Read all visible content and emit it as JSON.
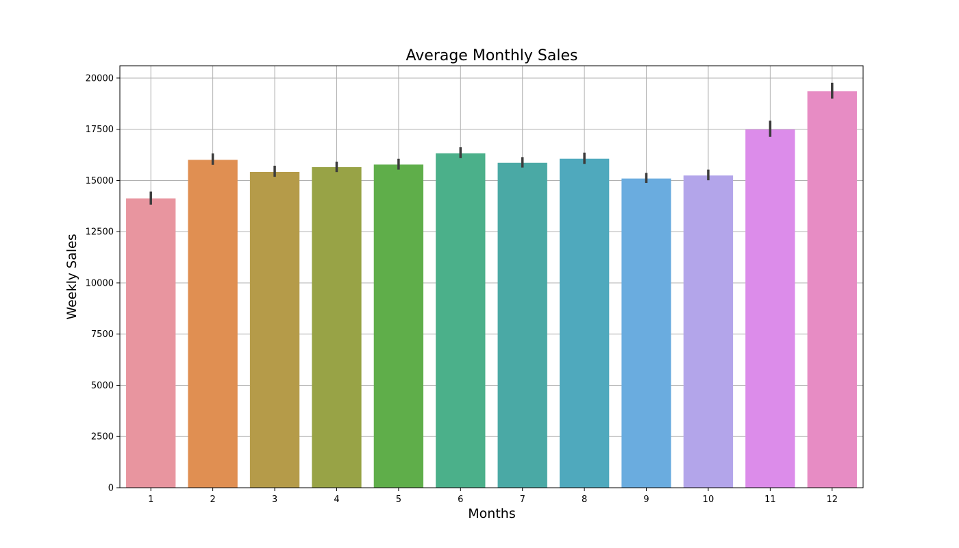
{
  "chart_data": {
    "type": "bar",
    "title": "Average Monthly Sales",
    "xlabel": "Months",
    "ylabel": "Weekly Sales",
    "categories": [
      "1",
      "2",
      "3",
      "4",
      "5",
      "6",
      "7",
      "8",
      "9",
      "10",
      "11",
      "12"
    ],
    "values": [
      14126,
      16008,
      15417,
      15650,
      15776,
      16326,
      15861,
      16062,
      15095,
      15243,
      17491,
      19355
    ],
    "error_low": [
      13820,
      15760,
      15180,
      15410,
      15530,
      16090,
      15630,
      15810,
      14880,
      15010,
      17130,
      19000
    ],
    "error_high": [
      14460,
      16320,
      15720,
      15920,
      16060,
      16620,
      16140,
      16360,
      15370,
      15530,
      17920,
      19770
    ],
    "colors": [
      "#e8959f",
      "#e08f52",
      "#b59b49",
      "#98a346",
      "#5fae4a",
      "#4bb08a",
      "#4aa9a5",
      "#4fa9bd",
      "#6aacdf",
      "#b3a5ea",
      "#dc8cea",
      "#e78cc4"
    ],
    "ylim": [
      0,
      20600
    ],
    "yticks": [
      0,
      2500,
      5000,
      7500,
      10000,
      12500,
      15000,
      17500,
      20000
    ],
    "grid": true,
    "legend": "none"
  }
}
